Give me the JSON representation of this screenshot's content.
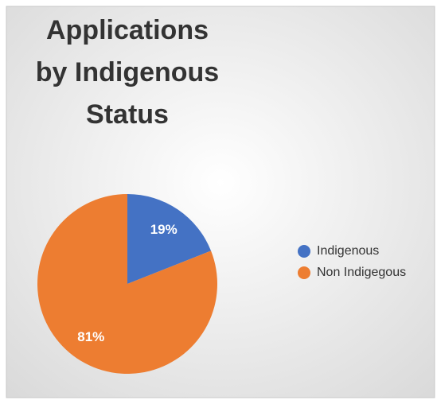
{
  "chart_data": {
    "type": "pie",
    "title": "Applications by Indigenous Status",
    "categories": [
      "Indigenous",
      "Non Indigegous"
    ],
    "values": [
      19,
      81
    ],
    "value_labels": [
      "19%",
      "81%"
    ],
    "colors": [
      "#4472c4",
      "#ed7d31"
    ],
    "legend": "right"
  }
}
